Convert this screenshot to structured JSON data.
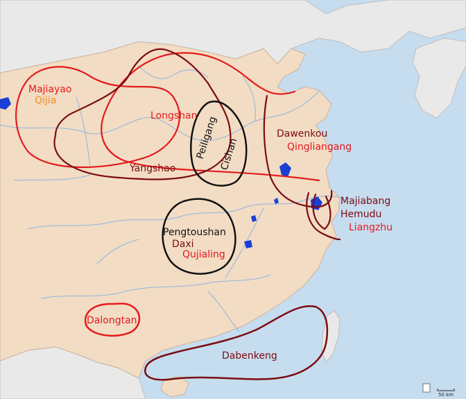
{
  "colors": {
    "sea": "#c6dcef",
    "land_main": "#f2dcc4",
    "land_other": "#e9e9e9",
    "water": "#1a3fd6",
    "river": "#8fb4dc",
    "red": "#e31a1c",
    "dark_red": "#7a0b10",
    "black": "#111111",
    "orange": "#f58a1f"
  },
  "labels": {
    "majiayao": "Majiayao",
    "qijia": "Qijia",
    "longshan": "Longshan",
    "peiligang": "Peiligang",
    "cishan": "Cishan",
    "yangshao": "Yangshao",
    "dawenkou": "Dawenkou",
    "qingliangang": "Qingliangang",
    "majiabang": "Majiabang",
    "hemudu": "Hemudu",
    "liangzhu": "Liangzhu",
    "pengtoushan": "Pengtoushan",
    "daxi": "Daxi",
    "qujialing": "Qujialing",
    "dalongtan": "Dalongtan",
    "dabenkeng": "Dabenkeng"
  },
  "scale_bar": {
    "label": "50 km"
  }
}
